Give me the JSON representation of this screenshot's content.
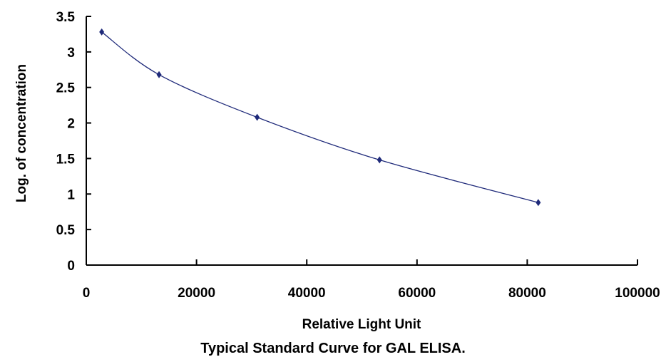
{
  "chart_data": {
    "type": "line",
    "title": "Typical Standard Curve for GAL ELISA.",
    "xlabel": "Relative Light Unit",
    "ylabel": "Log. of concentration",
    "xlim": [
      0,
      100000
    ],
    "ylim": [
      0,
      3.5
    ],
    "x_ticks": [
      "0",
      "20000",
      "40000",
      "60000",
      "80000",
      "100000"
    ],
    "y_ticks": [
      "0",
      "0.5",
      "1",
      "1.5",
      "2",
      "2.5",
      "3",
      "3.5"
    ],
    "grid": false,
    "series": [
      {
        "x": [
          2800,
          13200,
          31000,
          53200,
          82000
        ],
        "y": [
          3.28,
          2.68,
          2.08,
          1.48,
          0.88
        ],
        "marker": "diamond",
        "color": "#1f2a7a",
        "smooth": true
      }
    ]
  }
}
